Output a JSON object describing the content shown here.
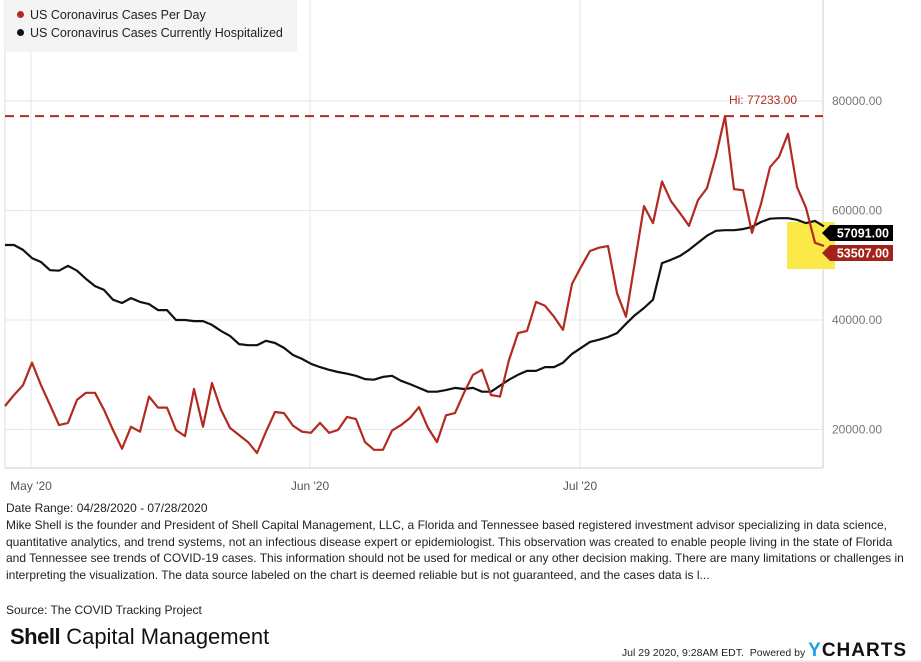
{
  "chart_data": {
    "type": "line",
    "x_unit": "days since 04/28/2020",
    "ylim": [
      14000,
      94000
    ],
    "y_ticks": [
      20000,
      40000,
      60000,
      80000
    ],
    "y_tick_labels": [
      "20000.00",
      "40000.00",
      "60000.00",
      "80000.00"
    ],
    "x_ticks": [
      {
        "day": 3,
        "label": "May '20"
      },
      {
        "day": 34,
        "label": "Jun '20"
      },
      {
        "day": 64,
        "label": "Jul '20"
      }
    ],
    "grid": true,
    "legend_position": "top-left",
    "high_line": {
      "value": 77233,
      "label": "Hi: 77233.00"
    },
    "series": [
      {
        "name": "US Coronavirus Cases Per Day",
        "color": "#b22a20",
        "last_label": "53507.00",
        "values": [
          24300,
          26300,
          28100,
          32200,
          28100,
          24500,
          20800,
          21200,
          25400,
          26700,
          26700,
          23600,
          19900,
          16500,
          20500,
          19600,
          26000,
          24000,
          24000,
          19900,
          18800,
          27400,
          20500,
          28500,
          23600,
          20300,
          19000,
          17700,
          15700,
          19600,
          23200,
          23000,
          20700,
          19600,
          19400,
          21200,
          19400,
          19900,
          22300,
          21900,
          17700,
          16300,
          16300,
          19800,
          20800,
          22100,
          24100,
          20300,
          17700,
          22600,
          23000,
          26700,
          30000,
          30900,
          26300,
          26000,
          32700,
          37600,
          38000,
          43300,
          42600,
          40600,
          38200,
          46600,
          49700,
          52600,
          53200,
          53500,
          44900,
          40600,
          50700,
          60800,
          57700,
          65300,
          61700,
          59500,
          57200,
          61900,
          64100,
          70000,
          77233,
          63900,
          63700,
          55900,
          61200,
          67900,
          69800,
          74000,
          64300,
          60500,
          54100,
          53507
        ]
      },
      {
        "name": "US Coronavirus Cases Currently Hospitalized",
        "color": "#111111",
        "last_label": "57091.00",
        "values": [
          53700,
          53700,
          52800,
          51300,
          50600,
          49100,
          49000,
          49900,
          49000,
          47500,
          46200,
          45500,
          43700,
          43100,
          44000,
          43300,
          42900,
          41800,
          41800,
          40000,
          40000,
          39800,
          39800,
          39100,
          38000,
          37100,
          35600,
          35400,
          35400,
          36200,
          35800,
          34900,
          33600,
          32900,
          32000,
          31400,
          30900,
          30500,
          30200,
          29800,
          29200,
          29100,
          29600,
          29800,
          28900,
          28300,
          27600,
          26900,
          26900,
          27200,
          27600,
          27400,
          27600,
          26900,
          26900,
          28000,
          29100,
          30000,
          30700,
          30700,
          31400,
          31400,
          32200,
          33800,
          34900,
          36000,
          36400,
          36900,
          37600,
          39300,
          40900,
          42200,
          43700,
          50400,
          51000,
          51700,
          52800,
          54100,
          55400,
          56300,
          56400,
          56400,
          56600,
          57000,
          57900,
          58500,
          58600,
          58600,
          58300,
          57700,
          58100,
          57091
        ]
      }
    ]
  },
  "date_range": "Date Range: 04/28/2020 - 07/28/2020",
  "description": "Mike Shell is the founder and President of Shell Capital Management, LLC, a Florida and Tennessee based registered investment advisor specializing in data science, quantitative analytics, and trend systems, not an infectious disease expert or epidemiologist. This observation was created to enable people living in the state of Florida and Tennessee see trends of COVID-19 cases. This information should not be used for medical or any other decision making. There are many limitations or challenges in interpreting the visualization. The data source labeled on the chart is deemed reliable but is not guaranteed, and the cases data is l...",
  "source": "Source: The COVID Tracking Project",
  "logo": {
    "bold": "Shell",
    "rest": " Capital Management"
  },
  "footer": {
    "timestamp": "Jul 29 2020, 9:28AM EDT.",
    "powered_by": "Powered by",
    "brand_y": "Y",
    "brand_rest": "CHARTS"
  },
  "highlight_color": "#fbe94a"
}
